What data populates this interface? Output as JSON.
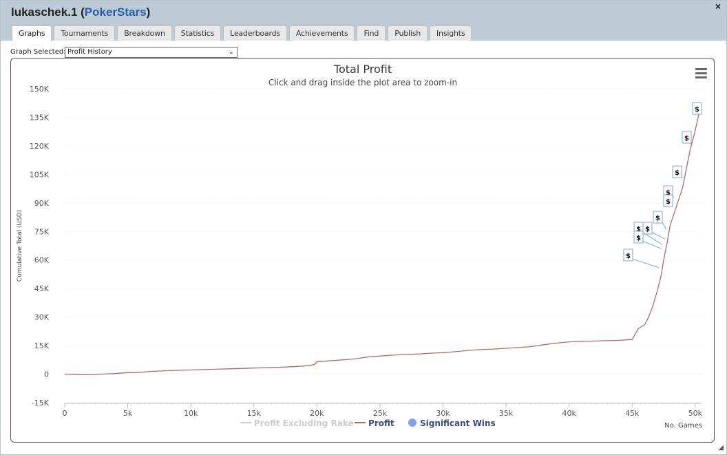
{
  "window": {
    "user": "lukaschek.1",
    "site": "PokerStars",
    "open_paren": " (",
    "close_paren": ")",
    "close_label": "×"
  },
  "tabs": [
    {
      "label": "Graphs",
      "active": true
    },
    {
      "label": "Tournaments"
    },
    {
      "label": "Breakdown"
    },
    {
      "label": "Statistics"
    },
    {
      "label": "Leaderboards"
    },
    {
      "label": "Achievements"
    },
    {
      "label": "Find"
    },
    {
      "label": "Publish"
    },
    {
      "label": "Insights"
    }
  ],
  "graph_select": {
    "label": "Graph Selected:",
    "value": "Profit History"
  },
  "chart_data": {
    "type": "line",
    "title": "Total Profit",
    "subtitle": "Click and drag inside the plot area to zoom-in",
    "xlabel": "No. Games",
    "ylabel": "Cumulative Total (USD)",
    "xlim": [
      0,
      50500
    ],
    "ylim": [
      -15000,
      150000
    ],
    "x_ticks": [
      0,
      5000,
      10000,
      15000,
      20000,
      25000,
      30000,
      35000,
      40000,
      45000,
      50000
    ],
    "x_tick_labels": [
      "0",
      "5k",
      "10k",
      "15k",
      "20k",
      "25k",
      "30k",
      "35k",
      "40k",
      "45k",
      "50k"
    ],
    "y_ticks": [
      -15000,
      0,
      15000,
      30000,
      45000,
      60000,
      75000,
      90000,
      105000,
      120000,
      135000,
      150000
    ],
    "y_tick_labels": [
      "-15K",
      "0",
      "15K",
      "30K",
      "45K",
      "60K",
      "75K",
      "90K",
      "105K",
      "120K",
      "135K",
      "150K"
    ],
    "grid": true,
    "legend_position": "bottom",
    "legend": [
      {
        "name": "Profit Excluding Rake",
        "color": "#cccccc",
        "symbol": "line",
        "hidden": true
      },
      {
        "name": "Profit",
        "color": "#b06b6b",
        "symbol": "line"
      },
      {
        "name": "Significant Wins",
        "color": "#7fa6e0",
        "symbol": "dot"
      }
    ],
    "series": [
      {
        "name": "Profit",
        "color": "#b06b6b",
        "x": [
          0,
          1000,
          2000,
          3000,
          4000,
          5000,
          6000,
          7000,
          8000,
          9000,
          10000,
          11000,
          12000,
          13000,
          14000,
          15000,
          16000,
          17000,
          18000,
          19000,
          19800,
          20000,
          21000,
          22000,
          23000,
          24000,
          25000,
          26000,
          27000,
          28000,
          29000,
          30000,
          31000,
          32000,
          33000,
          34000,
          35000,
          36000,
          37000,
          38000,
          39000,
          40000,
          41000,
          42000,
          43000,
          44000,
          45000,
          45500,
          46000,
          46300,
          46600,
          47000,
          47300,
          47500,
          47800,
          48000,
          48300,
          48600,
          49000,
          49300,
          49600,
          50000,
          50300
        ],
        "values": [
          0,
          -100,
          -300,
          0,
          300,
          800,
          1000,
          1500,
          1800,
          2000,
          2200,
          2400,
          2600,
          2800,
          3000,
          3200,
          3400,
          3600,
          3900,
          4300,
          5000,
          6500,
          7000,
          7500,
          8000,
          9000,
          9500,
          10000,
          10300,
          10600,
          11000,
          11300,
          11800,
          12500,
          12900,
          13200,
          13600,
          14000,
          14500,
          15500,
          16300,
          17000,
          17200,
          17400,
          17600,
          17800,
          18200,
          24000,
          26000,
          30000,
          35000,
          44000,
          52000,
          60000,
          70000,
          78000,
          84000,
          90000,
          98000,
          108000,
          118000,
          128000,
          137000
        ]
      }
    ],
    "significant_wins": [
      {
        "x": 50300,
        "y": 137000,
        "label": "$"
      },
      {
        "x": 49600,
        "y": 121000,
        "label": "$"
      },
      {
        "x": 49000,
        "y": 103000,
        "label": "$"
      },
      {
        "x": 48300,
        "y": 93000,
        "label": "$"
      },
      {
        "x": 48200,
        "y": 89000,
        "label": "$"
      },
      {
        "x": 47700,
        "y": 76000,
        "label": "$"
      },
      {
        "x": 47600,
        "y": 71000,
        "label": "$"
      },
      {
        "x": 47400,
        "y": 68000,
        "label": "$"
      },
      {
        "x": 47300,
        "y": 66000,
        "label": "$"
      },
      {
        "x": 47100,
        "y": 56000,
        "label": "$"
      }
    ]
  },
  "chart_menu_icon": "hamburger-menu-icon",
  "resize_icon": "◢"
}
